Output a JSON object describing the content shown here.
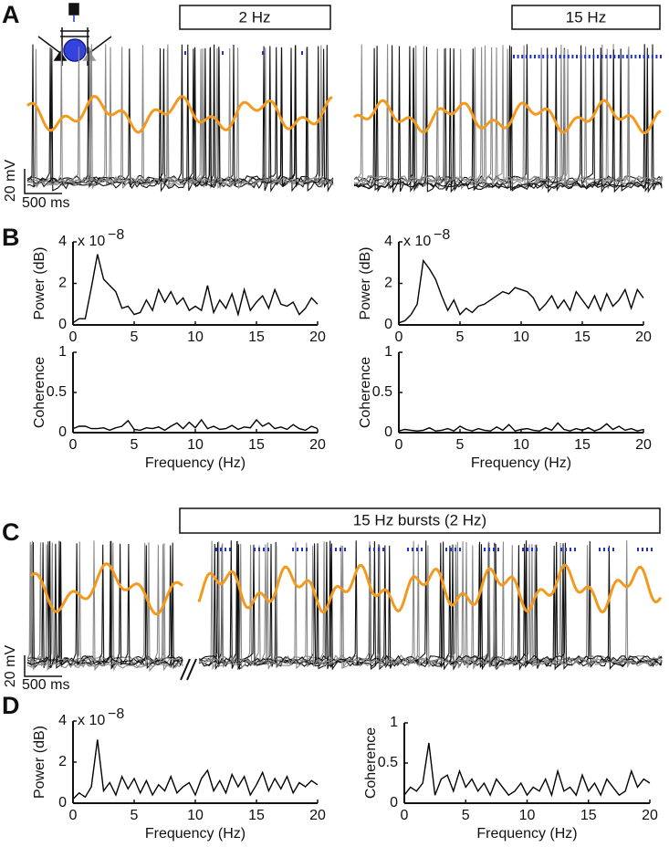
{
  "panel_labels": [
    "A",
    "B",
    "C",
    "D"
  ],
  "stimuli": [
    "2 Hz",
    "15 Hz",
    "15 Hz bursts (2 Hz)"
  ],
  "scale_bars": {
    "voltage": "20 mV",
    "time": "500 ms"
  },
  "chart_data": [
    {
      "type": "line",
      "ylabel": "Power (dB)",
      "multiplier": {
        "base": "x 10",
        "exponent": "−8"
      },
      "color": "#000000",
      "x": [
        0,
        0.5,
        1,
        1.5,
        2,
        2.5,
        3,
        3.5,
        4,
        4.5,
        5,
        5.5,
        6,
        6.5,
        7,
        7.5,
        8,
        8.5,
        9,
        9.5,
        10,
        10.5,
        11,
        11.5,
        12,
        12.5,
        13,
        13.5,
        14,
        14.5,
        15,
        15.5,
        16,
        16.5,
        17,
        17.5,
        18,
        18.5,
        19,
        19.5,
        20
      ],
      "values": [
        0.1,
        0.3,
        0.3,
        1.8,
        3.4,
        2.2,
        1.9,
        1.6,
        0.8,
        0.9,
        0.5,
        0.6,
        1.2,
        0.7,
        1.7,
        1.1,
        1.6,
        1.0,
        1.3,
        0.7,
        0.9,
        0.7,
        1.9,
        0.6,
        1.2,
        0.8,
        1.5,
        0.5,
        1.7,
        0.7,
        1.1,
        1.4,
        0.8,
        1.7,
        1.0,
        0.9,
        1.1,
        0.5,
        0.8,
        1.3,
        1.0
      ],
      "xlim": [
        0,
        20
      ],
      "xticks": [
        0,
        5,
        10,
        15,
        20
      ],
      "ylim": [
        0,
        4
      ],
      "yticks": [
        0,
        2,
        4
      ]
    },
    {
      "type": "line",
      "ylabel": "Coherence",
      "xlabel": "Frequency (Hz)",
      "color": "#000000",
      "x": [
        0,
        0.5,
        1,
        1.5,
        2,
        2.5,
        3,
        3.5,
        4,
        4.5,
        5,
        5.5,
        6,
        6.5,
        7,
        7.5,
        8,
        8.5,
        9,
        9.5,
        10,
        10.5,
        11,
        11.5,
        12,
        12.5,
        13,
        13.5,
        14,
        14.5,
        15,
        15.5,
        16,
        16.5,
        17,
        17.5,
        18,
        18.5,
        19,
        19.5,
        20
      ],
      "values": [
        0.05,
        0.08,
        0.08,
        0.05,
        0.05,
        0.06,
        0.03,
        0.06,
        0.08,
        0.15,
        0.04,
        0.03,
        0.06,
        0.05,
        0.07,
        0.03,
        0.08,
        0.12,
        0.05,
        0.13,
        0.06,
        0.16,
        0.05,
        0.08,
        0.04,
        0.05,
        0.09,
        0.04,
        0.07,
        0.06,
        0.16,
        0.08,
        0.12,
        0.05,
        0.07,
        0.04,
        0.1,
        0.05,
        0.03,
        0.08,
        0.05
      ],
      "xlim": [
        0,
        20
      ],
      "xticks": [
        0,
        5,
        10,
        15,
        20
      ],
      "ylim": [
        0,
        1
      ],
      "yticks": [
        0,
        0.5,
        1
      ]
    },
    {
      "type": "line",
      "ylabel": "Power (dB)",
      "multiplier": {
        "base": "x 10",
        "exponent": "−8"
      },
      "color": "#000000",
      "x": [
        0,
        0.5,
        1,
        1.5,
        2,
        2.5,
        3,
        3.5,
        4,
        4.5,
        5,
        5.5,
        6,
        6.5,
        7,
        7.5,
        8,
        8.5,
        9,
        9.5,
        10,
        10.5,
        11,
        11.5,
        12,
        12.5,
        13,
        13.5,
        14,
        14.5,
        15,
        15.5,
        16,
        16.5,
        17,
        17.5,
        18,
        18.5,
        19,
        19.5,
        20
      ],
      "values": [
        0.1,
        0.2,
        0.5,
        1.0,
        3.1,
        2.7,
        2.2,
        1.4,
        0.7,
        1.2,
        0.5,
        0.8,
        0.6,
        0.9,
        1.0,
        1.2,
        1.4,
        1.6,
        1.5,
        1.8,
        1.7,
        1.6,
        1.3,
        0.7,
        1.0,
        1.4,
        0.8,
        1.2,
        0.7,
        1.6,
        1.2,
        0.8,
        1.4,
        0.7,
        1.5,
        0.9,
        1.2,
        1.7,
        0.8,
        1.7,
        1.3
      ],
      "xlim": [
        0,
        20
      ],
      "xticks": [
        0,
        5,
        10,
        15,
        20
      ],
      "ylim": [
        0,
        4
      ],
      "yticks": [
        0,
        2,
        4
      ]
    },
    {
      "type": "line",
      "ylabel": "Coherence",
      "xlabel": "Frequency (Hz)",
      "color": "#000000",
      "x": [
        0,
        0.5,
        1,
        1.5,
        2,
        2.5,
        3,
        3.5,
        4,
        4.5,
        5,
        5.5,
        6,
        6.5,
        7,
        7.5,
        8,
        8.5,
        9,
        9.5,
        10,
        10.5,
        11,
        11.5,
        12,
        12.5,
        13,
        13.5,
        14,
        14.5,
        15,
        15.5,
        16,
        16.5,
        17,
        17.5,
        18,
        18.5,
        19,
        19.5,
        20
      ],
      "values": [
        0.02,
        0.04,
        0.03,
        0.02,
        0.03,
        0.06,
        0.02,
        0.03,
        0.05,
        0.02,
        0.08,
        0.04,
        0.02,
        0.05,
        0.03,
        0.02,
        0.07,
        0.03,
        0.1,
        0.02,
        0.04,
        0.05,
        0.03,
        0.02,
        0.06,
        0.03,
        0.12,
        0.04,
        0.02,
        0.05,
        0.03,
        0.06,
        0.02,
        0.05,
        0.11,
        0.04,
        0.08,
        0.03,
        0.05,
        0.02,
        0.04
      ],
      "xlim": [
        0,
        20
      ],
      "xticks": [
        0,
        5,
        10,
        15,
        20
      ],
      "ylim": [
        0,
        1
      ],
      "yticks": [
        0,
        0.5,
        1
      ]
    },
    {
      "type": "line",
      "ylabel": "Power (dB)",
      "xlabel": "Frequency (Hz)",
      "multiplier": {
        "base": "x 10",
        "exponent": "−8"
      },
      "color": "#000000",
      "x": [
        0,
        0.5,
        1,
        1.5,
        2,
        2.5,
        3,
        3.5,
        4,
        4.5,
        5,
        5.5,
        6,
        6.5,
        7,
        7.5,
        8,
        8.5,
        9,
        9.5,
        10,
        10.5,
        11,
        11.5,
        12,
        12.5,
        13,
        13.5,
        14,
        14.5,
        15,
        15.5,
        16,
        16.5,
        17,
        17.5,
        18,
        18.5,
        19,
        19.5,
        20
      ],
      "values": [
        0.2,
        0.5,
        0.3,
        0.8,
        3.1,
        0.6,
        1.0,
        0.4,
        1.3,
        0.7,
        1.2,
        0.5,
        1.1,
        0.4,
        0.9,
        0.6,
        1.3,
        0.5,
        0.8,
        1.0,
        0.4,
        1.2,
        1.6,
        0.6,
        1.1,
        0.5,
        1.4,
        0.8,
        1.3,
        0.4,
        0.9,
        1.5,
        0.6,
        1.2,
        0.7,
        1.3,
        0.5,
        1.0,
        0.8,
        1.1,
        0.9
      ],
      "xlim": [
        0,
        20
      ],
      "xticks": [
        0,
        5,
        10,
        15,
        20
      ],
      "ylim": [
        0,
        4
      ],
      "yticks": [
        0,
        2,
        4
      ]
    },
    {
      "type": "line",
      "ylabel": "Coherence",
      "xlabel": "Frequency (Hz)",
      "color": "#000000",
      "x": [
        0,
        0.5,
        1,
        1.5,
        2,
        2.5,
        3,
        3.5,
        4,
        4.5,
        5,
        5.5,
        6,
        6.5,
        7,
        7.5,
        8,
        8.5,
        9,
        9.5,
        10,
        10.5,
        11,
        11.5,
        12,
        12.5,
        13,
        13.5,
        14,
        14.5,
        15,
        15.5,
        16,
        16.5,
        17,
        17.5,
        18,
        18.5,
        19,
        19.5,
        20
      ],
      "values": [
        0.1,
        0.2,
        0.15,
        0.25,
        0.75,
        0.1,
        0.3,
        0.35,
        0.15,
        0.4,
        0.2,
        0.3,
        0.15,
        0.25,
        0.1,
        0.3,
        0.2,
        0.1,
        0.15,
        0.25,
        0.1,
        0.2,
        0.15,
        0.3,
        0.1,
        0.4,
        0.15,
        0.2,
        0.1,
        0.35,
        0.15,
        0.25,
        0.1,
        0.3,
        0.2,
        0.1,
        0.15,
        0.4,
        0.2,
        0.3,
        0.25
      ],
      "xlim": [
        0,
        20
      ],
      "xticks": [
        0,
        5,
        10,
        15,
        20
      ],
      "ylim": [
        0,
        1
      ],
      "yticks": [
        0,
        0.5,
        1
      ]
    }
  ]
}
